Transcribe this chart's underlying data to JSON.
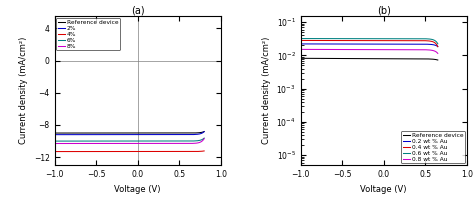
{
  "panel_a": {
    "title": "(a)",
    "xlabel": "Voltage (V)",
    "ylabel": "Current density (mA/cm²)",
    "xlim": [
      -1.0,
      1.0
    ],
    "ylim": [
      -13.0,
      5.5
    ],
    "xticks": [
      -1.0,
      -0.5,
      0.0,
      0.5,
      1.0
    ],
    "yticks": [
      -12,
      -8,
      -4,
      0,
      4
    ],
    "series": [
      {
        "label": "Reference device",
        "color": "#000000",
        "Jsc": 9.0,
        "J0": 2e-10,
        "n": 1.5,
        "Rsh": 800
      },
      {
        "label": "2%",
        "color": "#0000CC",
        "Jsc": 9.2,
        "J0": 2e-10,
        "n": 1.45,
        "Rsh": 900
      },
      {
        "label": "4%",
        "color": "#DD0000",
        "Jsc": 11.3,
        "J0": 3e-10,
        "n": 1.6,
        "Rsh": 600
      },
      {
        "label": "6%",
        "color": "#008080",
        "Jsc": 10.0,
        "J0": 2e-10,
        "n": 1.45,
        "Rsh": 900
      },
      {
        "label": "8%",
        "color": "#CC00CC",
        "Jsc": 10.3,
        "J0": 1.5e-10,
        "n": 1.4,
        "Rsh": 1000
      }
    ]
  },
  "panel_b": {
    "title": "(b)",
    "xlabel": "Voltage (V)",
    "ylabel": "Current density (mA/cm²)",
    "xlim": [
      -1.0,
      1.0
    ],
    "ylim_log": [
      5e-06,
      0.15
    ],
    "xticks": [
      -1.0,
      -0.5,
      0.0,
      0.5,
      1.0
    ],
    "series": [
      {
        "label": "Reference device",
        "color": "#000000",
        "Jsc": 0.008,
        "J0": 5e-10,
        "n": 1.8,
        "Rsh": 5000
      },
      {
        "label": "0.2 wt % Au",
        "color": "#0000CC",
        "Jsc": 0.022,
        "J0": 5e-10,
        "n": 1.6,
        "Rsh": 5000
      },
      {
        "label": "0.4 wt % Au",
        "color": "#DD0000",
        "Jsc": 0.028,
        "J0": 5e-10,
        "n": 1.5,
        "Rsh": 5000
      },
      {
        "label": "0.6 wt % Au",
        "color": "#008080",
        "Jsc": 0.032,
        "J0": 5e-10,
        "n": 1.5,
        "Rsh": 5000
      },
      {
        "label": "0.8 wt % Au",
        "color": "#CC00CC",
        "Jsc": 0.015,
        "J0": 5e-10,
        "n": 1.6,
        "Rsh": 5000
      }
    ]
  }
}
